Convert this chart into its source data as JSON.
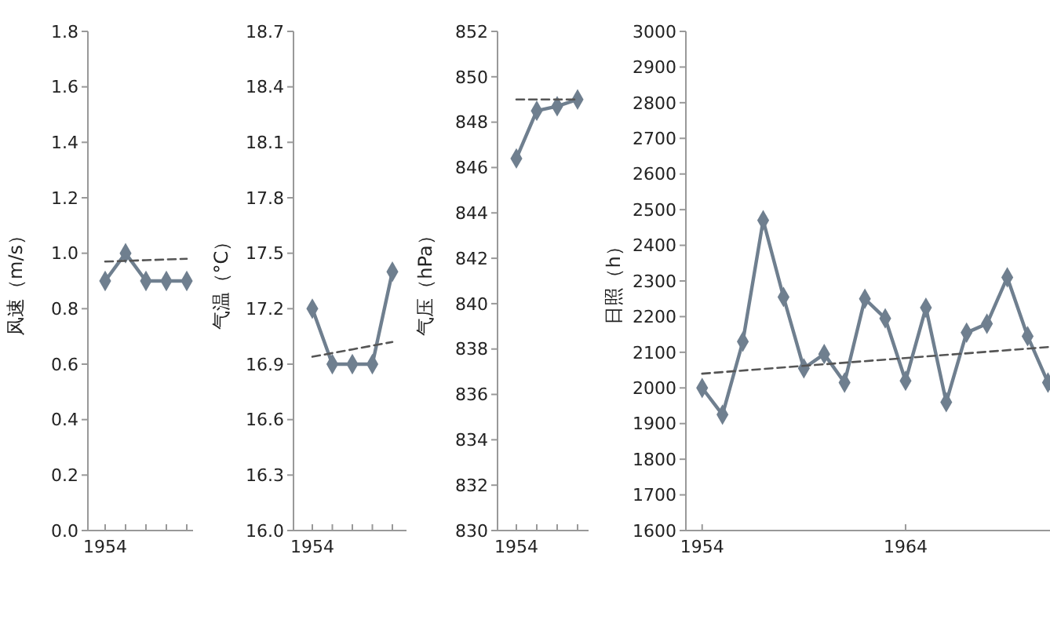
{
  "chart_data": [
    {
      "type": "line",
      "ylabel": "风速（m/s）",
      "marker": "diamond",
      "grid": false,
      "categories": [
        "1954",
        null,
        null,
        null,
        null
      ],
      "ylim": [
        0,
        1.8
      ],
      "yticks": [
        {
          "value": 0,
          "label": "0.0"
        },
        0.2,
        0.4,
        0.6,
        0.8,
        {
          "value": 1,
          "label": "1.0"
        },
        1.2,
        1.4,
        1.6,
        1.8
      ],
      "series": [
        {
          "color": "#6f7f8f",
          "values": [
            0.9,
            1.0,
            0.9,
            0.9,
            0.9
          ]
        },
        {
          "color": "#555555",
          "line_style": "dashed",
          "marker": "none",
          "values": [
            0.97,
            0.9725,
            0.975,
            0.9775,
            0.98
          ]
        }
      ]
    },
    {
      "type": "line",
      "ylabel": "气温（°C）",
      "marker": "diamond",
      "grid": false,
      "categories": [
        "1954",
        null,
        null,
        null,
        null
      ],
      "ylim": [
        16,
        18.7
      ],
      "yticks": [
        {
          "value": 16,
          "label": "16.0"
        },
        16.3,
        16.6,
        16.9,
        17.2,
        17.5,
        17.8,
        18.1,
        18.4,
        18.7
      ],
      "series": [
        {
          "color": "#6f7f8f",
          "values": [
            17.2,
            16.9,
            16.9,
            16.9,
            17.4
          ]
        },
        {
          "color": "#555555",
          "line_style": "dashed",
          "marker": "none",
          "values": [
            16.94,
            16.96,
            16.98,
            17.0,
            17.02
          ]
        }
      ]
    },
    {
      "type": "line",
      "ylabel": "气压（hPa）",
      "marker": "diamond",
      "grid": false,
      "categories": [
        "1954",
        null,
        null,
        null
      ],
      "ylim": [
        830,
        852
      ],
      "yticks": [
        830,
        832,
        834,
        836,
        838,
        840,
        842,
        844,
        846,
        848,
        850,
        852
      ],
      "series": [
        {
          "color": "#6f7f8f",
          "values": [
            846.4,
            848.5,
            848.7,
            849.0
          ]
        },
        {
          "color": "#555555",
          "line_style": "dashed",
          "marker": "none",
          "values": [
            849.0,
            849.0,
            849.0,
            849.0
          ]
        }
      ]
    },
    {
      "type": "line",
      "ylabel": "日照（h）",
      "marker": "diamond",
      "grid": false,
      "xlim": [
        1953.2,
        1971.1
      ],
      "ylim": [
        1600,
        3000
      ],
      "yticks": [
        1600,
        1700,
        1800,
        1900,
        2000,
        2100,
        2200,
        2300,
        2400,
        2500,
        2600,
        2700,
        2800,
        2900,
        3000
      ],
      "xticks": [
        1954,
        1964
      ],
      "series": [
        {
          "color": "#6f7f8f",
          "x": [
            1954,
            1955,
            1956,
            1957,
            1958,
            1959,
            1960,
            1961,
            1962,
            1963,
            1964,
            1965,
            1966,
            1967,
            1968,
            1969,
            1970,
            1971
          ],
          "values": [
            2000,
            1925,
            2130,
            2470,
            2255,
            2055,
            2095,
            2015,
            2250,
            2195,
            2020,
            2225,
            1960,
            2155,
            2180,
            2310,
            2145,
            2015
          ]
        },
        {
          "color": "#555555",
          "line_style": "dashed",
          "marker": "none",
          "x": [
            1954,
            1971.1
          ],
          "values": [
            2040,
            2115
          ]
        }
      ]
    }
  ]
}
